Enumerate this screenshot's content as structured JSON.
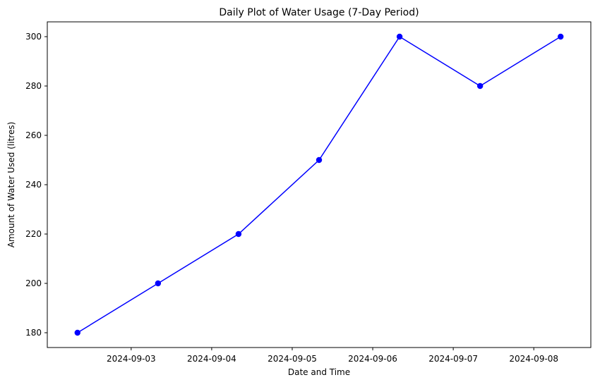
{
  "chart_data": {
    "type": "line",
    "title": "Daily Plot of Water Usage (7-Day Period)",
    "xlabel": "Date and Time",
    "ylabel": "Amount of Water Used (litres)",
    "x": [
      "2024-09-02 08:00",
      "2024-09-03 08:00",
      "2024-09-04 08:00",
      "2024-09-05 08:00",
      "2024-09-06 08:00",
      "2024-09-07 08:00",
      "2024-09-08 08:00"
    ],
    "series": [
      {
        "values": [
          180,
          200,
          220,
          250,
          300,
          280,
          300
        ],
        "color": "#0000ff",
        "marker": "circle"
      }
    ],
    "xticks": [
      "2024-09-03",
      "2024-09-04",
      "2024-09-05",
      "2024-09-06",
      "2024-09-07",
      "2024-09-08"
    ],
    "yticks": [
      180,
      200,
      220,
      240,
      260,
      280,
      300
    ],
    "xlim": [
      "2024-09-01 23:00",
      "2024-09-08 17:00"
    ],
    "ylim": [
      174,
      306
    ],
    "grid": false,
    "legend": "none"
  }
}
